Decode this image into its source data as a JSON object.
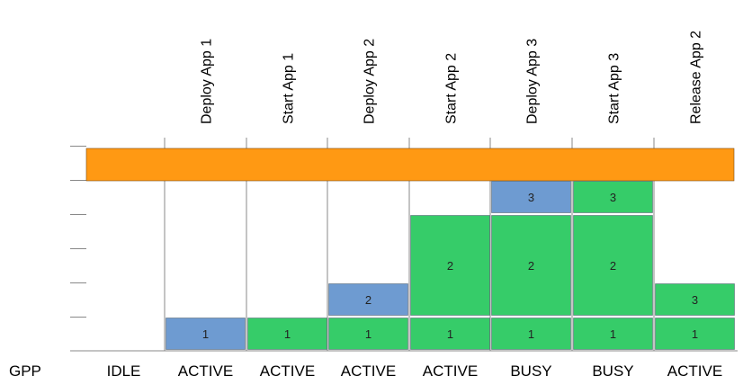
{
  "row_label": "GPP",
  "steps": [
    {
      "label": "",
      "state": "IDLE",
      "boxes": []
    },
    {
      "label": "Deploy App 1",
      "state": "ACTIVE",
      "boxes": [
        {
          "app": "1",
          "slot": 0,
          "span": 1,
          "status": "deploying"
        }
      ]
    },
    {
      "label": "Start App 1",
      "state": "ACTIVE",
      "boxes": [
        {
          "app": "1",
          "slot": 0,
          "span": 1,
          "status": "running"
        }
      ]
    },
    {
      "label": "Deploy App 2",
      "state": "ACTIVE",
      "boxes": [
        {
          "app": "1",
          "slot": 0,
          "span": 1,
          "status": "running"
        },
        {
          "app": "2",
          "slot": 1,
          "span": 1,
          "status": "deploying"
        }
      ]
    },
    {
      "label": "Start App 2",
      "state": "ACTIVE",
      "boxes": [
        {
          "app": "1",
          "slot": 0,
          "span": 1,
          "status": "running"
        },
        {
          "app": "2",
          "slot": 1,
          "span": 3,
          "status": "running"
        }
      ]
    },
    {
      "label": "Deploy App 3",
      "state": "BUSY",
      "boxes": [
        {
          "app": "1",
          "slot": 0,
          "span": 1,
          "status": "running"
        },
        {
          "app": "2",
          "slot": 1,
          "span": 3,
          "status": "running"
        },
        {
          "app": "3",
          "slot": 4,
          "span": 1,
          "status": "deploying"
        }
      ]
    },
    {
      "label": "Start App 3",
      "state": "BUSY",
      "boxes": [
        {
          "app": "1",
          "slot": 0,
          "span": 1,
          "status": "running"
        },
        {
          "app": "2",
          "slot": 1,
          "span": 3,
          "status": "running"
        },
        {
          "app": "3",
          "slot": 4,
          "span": 1,
          "status": "running"
        }
      ]
    },
    {
      "label": "Release App 2",
      "state": "ACTIVE",
      "boxes": [
        {
          "app": "1",
          "slot": 0,
          "span": 1,
          "status": "running"
        },
        {
          "app": "3",
          "slot": 1,
          "span": 1,
          "status": "running"
        }
      ]
    }
  ],
  "colors": {
    "capacity_bar": "#FF9913",
    "deploying": "#6E9BD1",
    "running": "#36CC69",
    "grid": "#888888"
  }
}
